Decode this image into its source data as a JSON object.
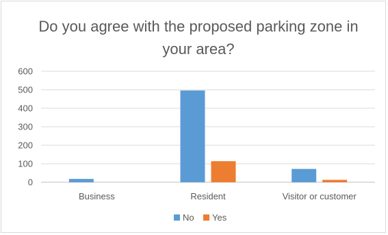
{
  "chart_data": {
    "type": "bar",
    "title": "Do you agree with the proposed parking zone in your area?",
    "categories": [
      "Business",
      "Resident",
      "Visitor or customer"
    ],
    "series": [
      {
        "name": "No",
        "values": [
          18,
          496,
          72
        ],
        "color": "#5b9bd5"
      },
      {
        "name": "Yes",
        "values": [
          0,
          114,
          13
        ],
        "color": "#ed7d31"
      }
    ],
    "yticks": [
      "0",
      "100",
      "200",
      "300",
      "400",
      "500",
      "600"
    ],
    "ylim": [
      0,
      600
    ],
    "grid": true,
    "legend_position": "bottom"
  }
}
